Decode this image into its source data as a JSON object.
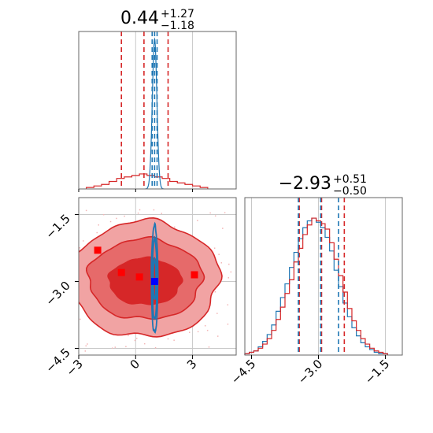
{
  "chart_data": {
    "type": "corner",
    "colors": {
      "red": "#d62728",
      "blue": "#1f77b4",
      "red_marker": "#ff0000",
      "blue_marker": "#0000ff"
    },
    "axes": {
      "param1": {
        "lim": [
          -3.0,
          5.3
        ],
        "ticks": [
          -3,
          0,
          3
        ],
        "tick_labels": [
          "−3",
          "0",
          "3"
        ]
      },
      "param2": {
        "lim": [
          -4.65,
          -1.12
        ],
        "ticks": [
          -4.5,
          -3.0,
          -1.5
        ],
        "tick_labels": [
          "−4.5",
          "−3.0",
          "−1.5"
        ]
      }
    },
    "titles": {
      "param1": {
        "value": "0.44",
        "plus": "+1.27",
        "minus": "−1.18"
      },
      "param2": {
        "value": "−2.93",
        "plus": "+0.51",
        "minus": "−0.50"
      }
    },
    "quantiles": {
      "param1": {
        "red": [
          -0.75,
          0.44,
          1.71
        ],
        "blue": [
          0.87,
          1.0,
          1.13
        ]
      },
      "param2": {
        "red": [
          -3.43,
          -2.93,
          -2.42
        ],
        "blue": [
          -3.45,
          -2.95,
          -2.55
        ]
      }
    },
    "hist_param1": {
      "bins": [
        -2.6,
        -2.2,
        -1.8,
        -1.4,
        -1.0,
        -0.6,
        -0.2,
        0.2,
        0.6,
        1.0,
        1.4,
        1.8,
        2.2,
        2.6,
        3.0,
        3.4,
        3.8
      ],
      "red": [
        0.01,
        0.02,
        0.03,
        0.05,
        0.07,
        0.08,
        0.09,
        0.1,
        0.09,
        0.08,
        0.07,
        0.05,
        0.04,
        0.03,
        0.02,
        0.01
      ],
      "blue_peak": {
        "center": 1.0,
        "width": 0.12,
        "height": 1.0
      }
    },
    "hist_param2": {
      "x": [
        -4.6,
        -4.5,
        -4.4,
        -4.3,
        -4.2,
        -4.1,
        -4.0,
        -3.9,
        -3.8,
        -3.7,
        -3.6,
        -3.5,
        -3.4,
        -3.3,
        -3.2,
        -3.1,
        -3.0,
        -2.9,
        -2.8,
        -2.7,
        -2.6,
        -2.5,
        -2.4,
        -2.3,
        -2.2,
        -2.1,
        -2.0,
        -1.9,
        -1.8,
        -1.7,
        -1.6,
        -1.5
      ],
      "red": [
        0.01,
        0.02,
        0.03,
        0.05,
        0.08,
        0.12,
        0.18,
        0.26,
        0.35,
        0.45,
        0.55,
        0.68,
        0.78,
        0.88,
        0.95,
        1.0,
        0.98,
        0.96,
        0.92,
        0.82,
        0.7,
        0.58,
        0.46,
        0.34,
        0.25,
        0.18,
        0.12,
        0.08,
        0.05,
        0.03,
        0.02,
        0.01
      ],
      "blue": [
        0.01,
        0.02,
        0.03,
        0.06,
        0.1,
        0.15,
        0.22,
        0.32,
        0.42,
        0.52,
        0.64,
        0.75,
        0.85,
        0.93,
        0.98,
        1.0,
        0.97,
        0.93,
        0.86,
        0.76,
        0.62,
        0.5,
        0.38,
        0.28,
        0.2,
        0.14,
        0.09,
        0.06,
        0.04,
        0.02,
        0.01,
        0.01
      ]
    },
    "contours_red": [
      {
        "level": 0.39,
        "cx": 0.5,
        "cy": -3.0,
        "rx": 1.9,
        "ry": 0.52
      },
      {
        "level": 0.86,
        "cx": 0.5,
        "cy": -2.95,
        "rx": 3.0,
        "ry": 0.9
      },
      {
        "level": 0.99,
        "cx": 0.5,
        "cy": -2.95,
        "rx": 3.9,
        "ry": 1.3
      }
    ],
    "contours_blue": [
      {
        "level": 0.39,
        "cx": 1.0,
        "cy": -2.95,
        "rx": 0.07,
        "ry": 0.45
      },
      {
        "level": 0.86,
        "cx": 1.0,
        "cy": -2.95,
        "rx": 0.12,
        "ry": 0.9
      },
      {
        "level": 0.99,
        "cx": 1.0,
        "cy": -2.95,
        "rx": 0.17,
        "ry": 1.2
      }
    ],
    "markers_red": [
      [
        -2.0,
        -2.3
      ],
      [
        -0.75,
        -2.8
      ],
      [
        0.2,
        -2.9
      ],
      [
        3.1,
        -2.85
      ]
    ],
    "marker_blue": [
      1.0,
      -3.0
    ]
  }
}
